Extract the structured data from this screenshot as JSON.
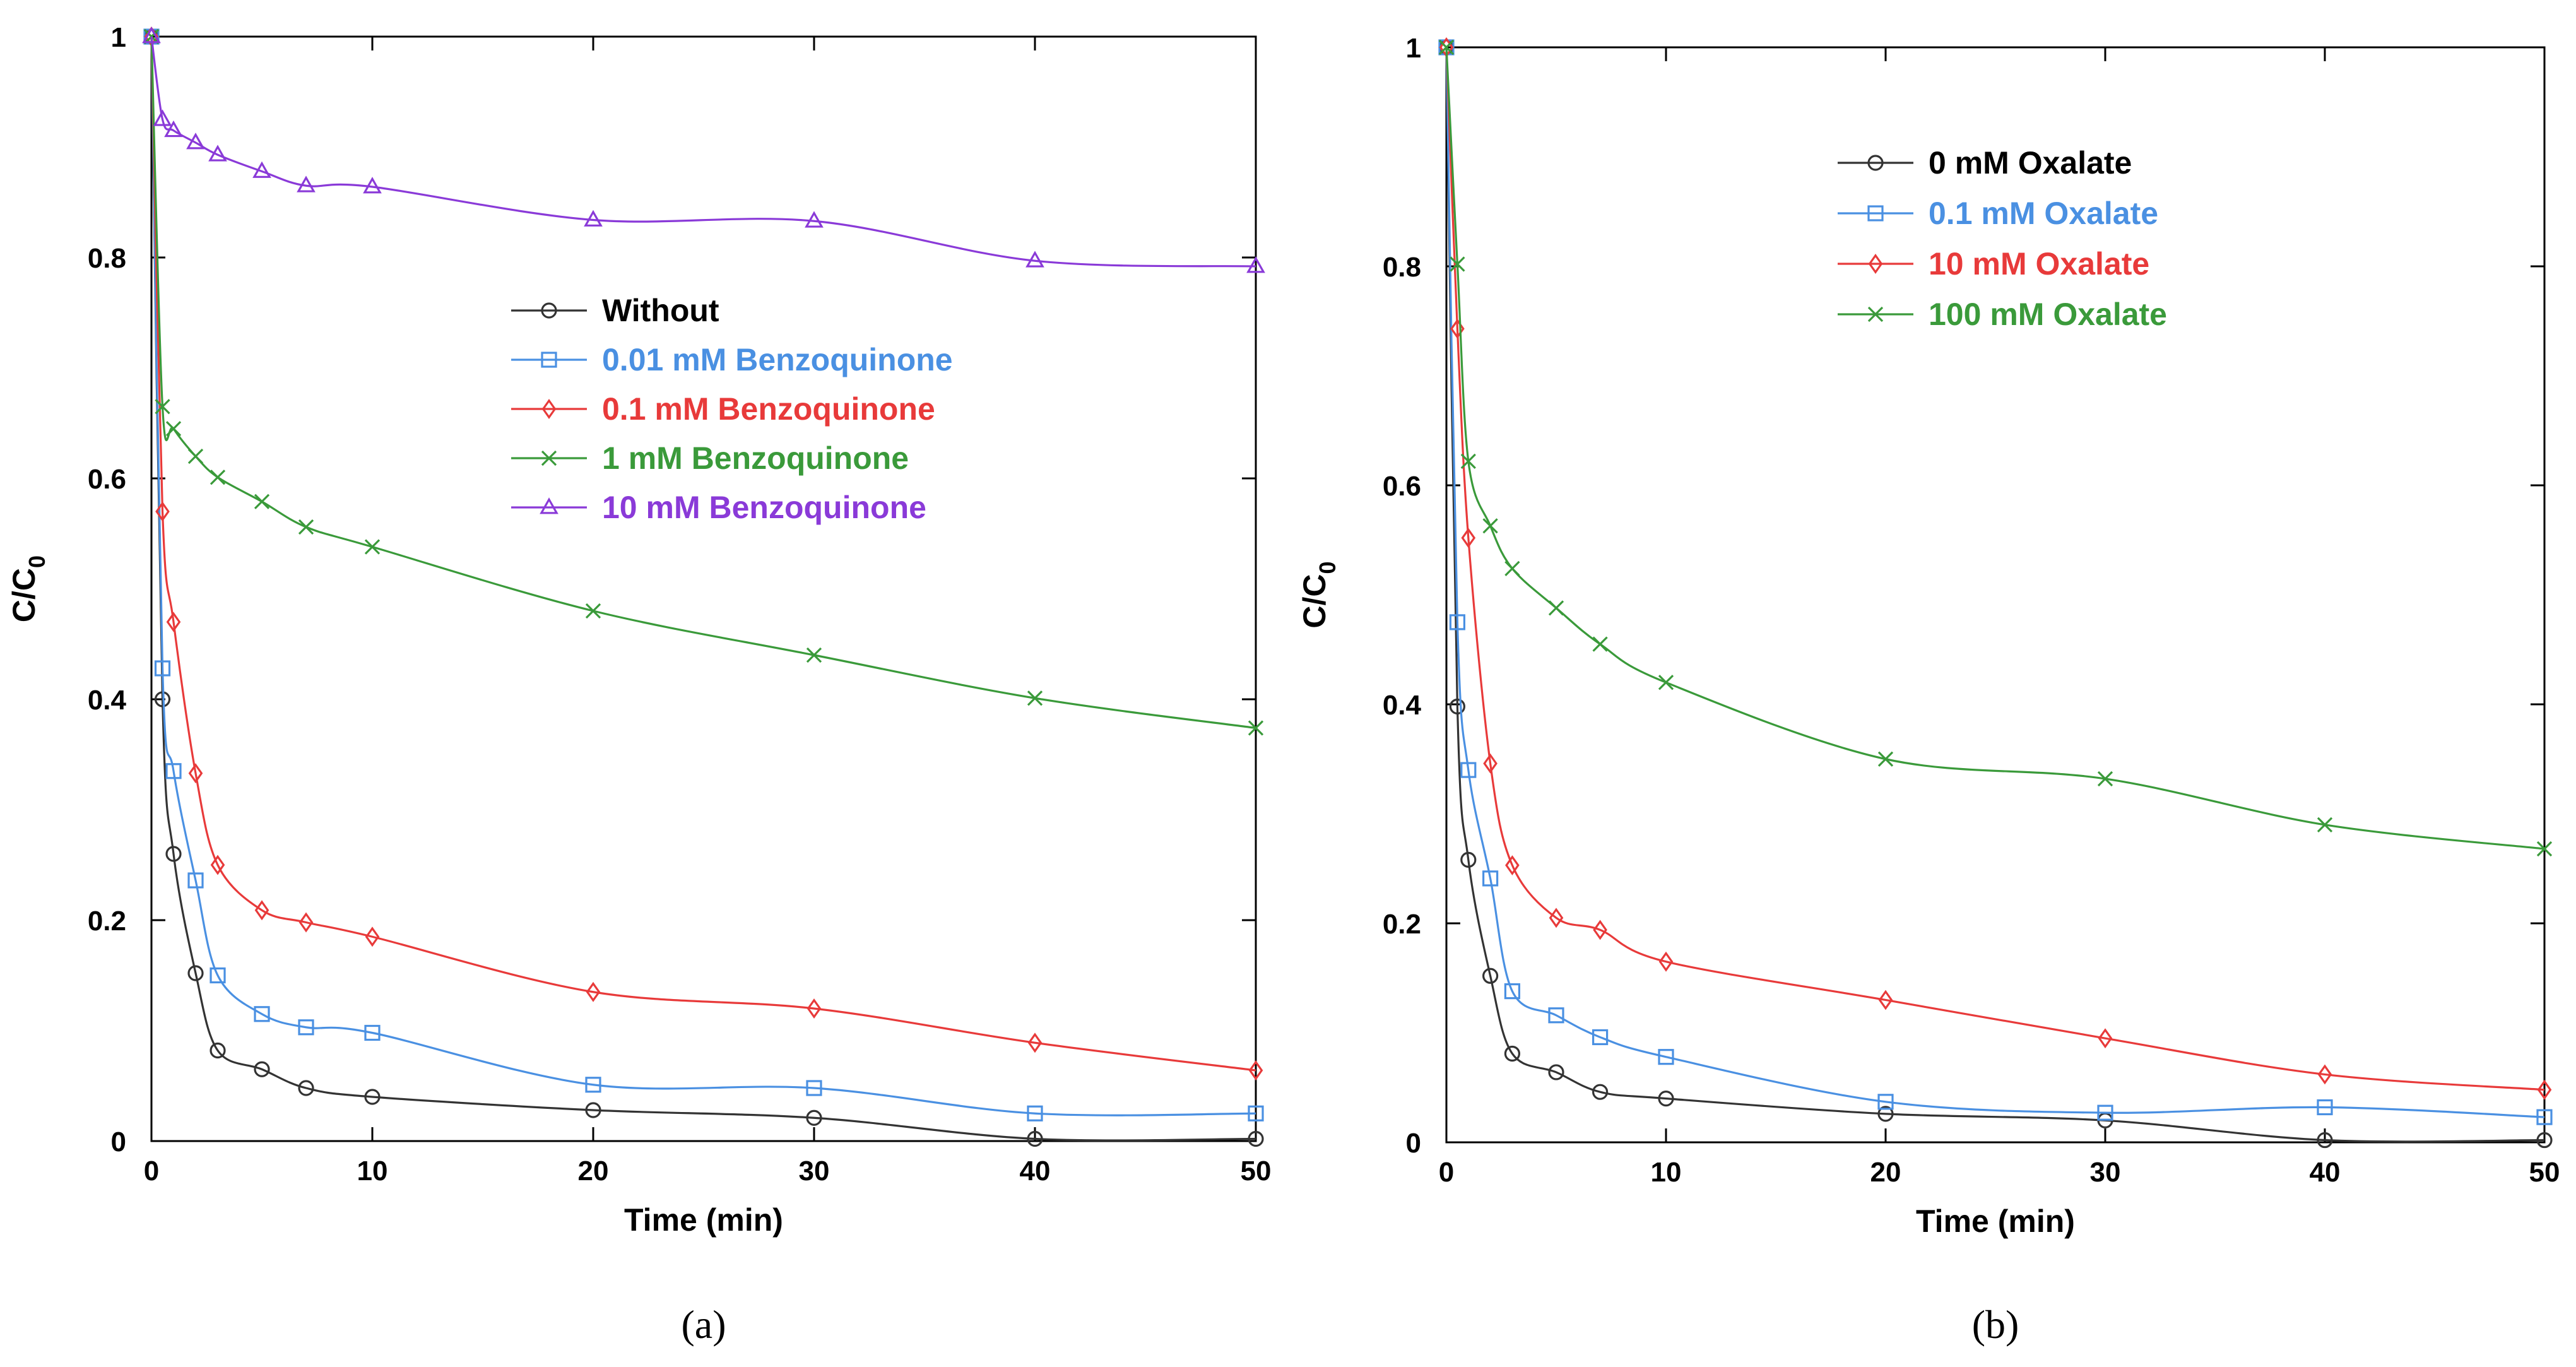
{
  "chart_data": [
    {
      "type": "line",
      "panel_label": "(a)",
      "xlabel": "Time (min)",
      "ylabel": "C/C",
      "ylabel_subscript": "0",
      "xlim": [
        0,
        50
      ],
      "ylim": [
        0,
        1
      ],
      "x_ticks": [
        0,
        10,
        20,
        30,
        40,
        50
      ],
      "y_ticks": [
        0,
        0.2,
        0.4,
        0.6,
        0.8,
        1
      ],
      "y_tick_labels": [
        "0",
        "0.2",
        "0.4",
        "0.6",
        "0.8",
        "1"
      ],
      "legend_position": "center",
      "series": [
        {
          "name": "Without",
          "color": "#333333",
          "marker": "circle",
          "x": [
            0,
            0.5,
            1,
            2,
            3,
            5,
            7,
            10,
            20,
            30,
            40,
            50
          ],
          "y": [
            1.0,
            0.4,
            0.26,
            0.152,
            0.082,
            0.065,
            0.048,
            0.04,
            0.028,
            0.021,
            0.002,
            0.002
          ]
        },
        {
          "name": "0.01 mM Benzoquinone",
          "color": "#4a90e2",
          "marker": "square",
          "x": [
            0,
            0.5,
            1,
            2,
            3,
            5,
            7,
            10,
            20,
            30,
            40,
            50
          ],
          "y": [
            1.0,
            0.428,
            0.335,
            0.236,
            0.15,
            0.115,
            0.103,
            0.098,
            0.051,
            0.048,
            0.025,
            0.025
          ]
        },
        {
          "name": "0.1 mM Benzoquinone",
          "color": "#e83a3a",
          "marker": "diamond",
          "x": [
            0,
            0.5,
            1,
            2,
            3,
            5,
            7,
            10,
            20,
            30,
            40,
            50
          ],
          "y": [
            1.0,
            0.57,
            0.47,
            0.333,
            0.25,
            0.209,
            0.198,
            0.185,
            0.135,
            0.12,
            0.089,
            0.064
          ]
        },
        {
          "name": "1 mM Benzoquinone",
          "color": "#3a9a3a",
          "marker": "x",
          "x": [
            0,
            0.5,
            1,
            2,
            3,
            5,
            7,
            10,
            20,
            30,
            40,
            50
          ],
          "y": [
            1.0,
            0.665,
            0.645,
            0.62,
            0.601,
            0.579,
            0.556,
            0.538,
            0.48,
            0.44,
            0.401,
            0.374
          ]
        },
        {
          "name": "10 mM Benzoquinone",
          "color": "#8a3ad8",
          "marker": "triangle",
          "x": [
            0,
            0.5,
            1,
            2,
            3,
            5,
            7,
            10,
            20,
            30,
            40,
            50
          ],
          "y": [
            1.0,
            0.925,
            0.915,
            0.904,
            0.893,
            0.878,
            0.865,
            0.864,
            0.834,
            0.833,
            0.797,
            0.792
          ]
        }
      ]
    },
    {
      "type": "line",
      "panel_label": "(b)",
      "xlabel": "Time (min)",
      "ylabel": "C/C",
      "ylabel_subscript": "0",
      "xlim": [
        0,
        50
      ],
      "ylim": [
        0,
        1
      ],
      "x_ticks": [
        0,
        10,
        20,
        30,
        40,
        50
      ],
      "y_ticks": [
        0,
        0.2,
        0.4,
        0.6,
        0.8,
        1
      ],
      "y_tick_labels": [
        "0",
        "0.2",
        "0.4",
        "0.6",
        "0.8",
        "1"
      ],
      "legend_position": "top-center",
      "series": [
        {
          "name": "0 mM Oxalate",
          "color": "#333333",
          "marker": "circle",
          "x": [
            0,
            0.5,
            1,
            2,
            3,
            5,
            7,
            10,
            20,
            30,
            40,
            50
          ],
          "y": [
            1.0,
            0.398,
            0.258,
            0.152,
            0.081,
            0.064,
            0.046,
            0.04,
            0.026,
            0.02,
            0.002,
            0.002
          ]
        },
        {
          "name": "0.1 mM Oxalate",
          "color": "#4a90e2",
          "marker": "square",
          "x": [
            0,
            0.5,
            1,
            2,
            3,
            5,
            7,
            10,
            20,
            30,
            40,
            50
          ],
          "y": [
            1.0,
            0.475,
            0.34,
            0.241,
            0.138,
            0.116,
            0.096,
            0.078,
            0.037,
            0.027,
            0.032,
            0.023
          ]
        },
        {
          "name": "10 mM Oxalate",
          "color": "#e83a3a",
          "marker": "diamond",
          "x": [
            0,
            0.5,
            1,
            2,
            3,
            5,
            7,
            10,
            20,
            30,
            40,
            50
          ],
          "y": [
            1.0,
            0.743,
            0.552,
            0.346,
            0.253,
            0.205,
            0.194,
            0.165,
            0.13,
            0.095,
            0.062,
            0.048
          ]
        },
        {
          "name": "100 mM Oxalate",
          "color": "#3a9a3a",
          "marker": "x",
          "x": [
            0,
            0.5,
            1,
            2,
            3,
            5,
            7,
            10,
            20,
            30,
            40,
            50
          ],
          "y": [
            1.0,
            0.802,
            0.622,
            0.563,
            0.524,
            0.488,
            0.455,
            0.42,
            0.35,
            0.332,
            0.29,
            0.268
          ]
        }
      ]
    }
  ]
}
